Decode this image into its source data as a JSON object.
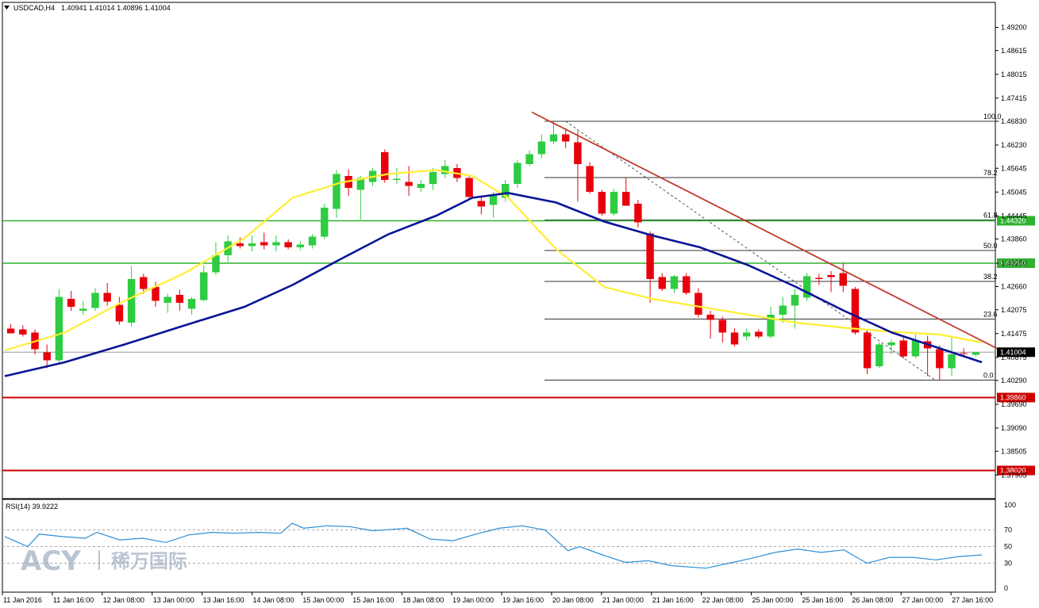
{
  "header": {
    "symbol": "USDCAD,H4",
    "ohlc": "1.40941 1.41014 1.40896 1.41004"
  },
  "rsi": {
    "label": "RSI(14) 39.9222",
    "levels": [
      "100",
      "70",
      "50",
      "30",
      "0"
    ]
  },
  "watermark": {
    "latin": "ACY",
    "chinese": "稀万国际"
  },
  "colors": {
    "bull": "#2ecc40",
    "bear": "#e8000b",
    "ma_fast": "#ffee33",
    "ma_slow": "#0a1496",
    "support": "#30b030",
    "resistance": "#cc0000",
    "trend": "#c0392b"
  },
  "chart_data": {
    "type": "candlestick",
    "title": "USDCAD,H4",
    "y_range": [
      1.3745,
      1.4955
    ],
    "x_labels": [
      "11 Jan 2016",
      "11 Jan 16:00",
      "12 Jan 08:00",
      "13 Jan 00:00",
      "13 Jan 16:00",
      "14 Jan 08:00",
      "15 Jan 00:00",
      "15 Jan 16:00",
      "18 Jan 08:00",
      "19 Jan 00:00",
      "19 Jan 16:00",
      "20 Jan 08:00",
      "21 Jan 00:00",
      "21 Jan 16:00",
      "22 Jan 08:00",
      "25 Jan 00:00",
      "25 Jan 16:00",
      "26 Jan 08:00",
      "27 Jan 00:00",
      "27 Jan 16:00"
    ],
    "y_ticks": [
      "1.49200",
      "1.48615",
      "1.48015",
      "1.47415",
      "1.46830",
      "1.46230",
      "1.45645",
      "1.45045",
      "1.44445",
      "1.43860",
      "1.43250",
      "1.42660",
      "1.42075",
      "1.41475",
      "1.40875",
      "1.40290",
      "1.39690",
      "1.39090",
      "1.38505",
      "1.37905"
    ],
    "candles": [
      {
        "o": 1.416,
        "h": 1.4172,
        "l": 1.4148,
        "c": 1.4148
      },
      {
        "o": 1.4158,
        "h": 1.4168,
        "l": 1.414,
        "c": 1.4145
      },
      {
        "o": 1.415,
        "h": 1.4158,
        "l": 1.4095,
        "c": 1.4108
      },
      {
        "o": 1.41,
        "h": 1.412,
        "l": 1.406,
        "c": 1.408
      },
      {
        "o": 1.408,
        "h": 1.426,
        "l": 1.4075,
        "c": 1.424
      },
      {
        "o": 1.4235,
        "h": 1.4255,
        "l": 1.4205,
        "c": 1.4215
      },
      {
        "o": 1.4205,
        "h": 1.423,
        "l": 1.4195,
        "c": 1.421
      },
      {
        "o": 1.4212,
        "h": 1.4262,
        "l": 1.4205,
        "c": 1.425
      },
      {
        "o": 1.425,
        "h": 1.4275,
        "l": 1.4218,
        "c": 1.4228
      },
      {
        "o": 1.422,
        "h": 1.424,
        "l": 1.417,
        "c": 1.4178
      },
      {
        "o": 1.4175,
        "h": 1.4318,
        "l": 1.4165,
        "c": 1.4285
      },
      {
        "o": 1.429,
        "h": 1.4298,
        "l": 1.4248,
        "c": 1.426
      },
      {
        "o": 1.4265,
        "h": 1.4278,
        "l": 1.4215,
        "c": 1.423
      },
      {
        "o": 1.4225,
        "h": 1.4248,
        "l": 1.42,
        "c": 1.424
      },
      {
        "o": 1.4245,
        "h": 1.4258,
        "l": 1.4205,
        "c": 1.4225
      },
      {
        "o": 1.421,
        "h": 1.424,
        "l": 1.4195,
        "c": 1.4235
      },
      {
        "o": 1.4232,
        "h": 1.432,
        "l": 1.4228,
        "c": 1.4302
      },
      {
        "o": 1.4302,
        "h": 1.4378,
        "l": 1.4295,
        "c": 1.4345
      },
      {
        "o": 1.4345,
        "h": 1.4395,
        "l": 1.4328,
        "c": 1.438
      },
      {
        "o": 1.4375,
        "h": 1.439,
        "l": 1.4362,
        "c": 1.4368
      },
      {
        "o": 1.4368,
        "h": 1.4395,
        "l": 1.4355,
        "c": 1.4375
      },
      {
        "o": 1.4378,
        "h": 1.4402,
        "l": 1.436,
        "c": 1.437
      },
      {
        "o": 1.437,
        "h": 1.4395,
        "l": 1.4355,
        "c": 1.4378
      },
      {
        "o": 1.4378,
        "h": 1.4385,
        "l": 1.436,
        "c": 1.4365
      },
      {
        "o": 1.4365,
        "h": 1.438,
        "l": 1.4358,
        "c": 1.4372
      },
      {
        "o": 1.437,
        "h": 1.4398,
        "l": 1.4362,
        "c": 1.4392
      },
      {
        "o": 1.4392,
        "h": 1.4475,
        "l": 1.4385,
        "c": 1.4465
      },
      {
        "o": 1.4462,
        "h": 1.456,
        "l": 1.444,
        "c": 1.455
      },
      {
        "o": 1.4545,
        "h": 1.4562,
        "l": 1.4495,
        "c": 1.4515
      },
      {
        "o": 1.451,
        "h": 1.4545,
        "l": 1.4435,
        "c": 1.454
      },
      {
        "o": 1.453,
        "h": 1.4565,
        "l": 1.452,
        "c": 1.4558
      },
      {
        "o": 1.4605,
        "h": 1.4612,
        "l": 1.4528,
        "c": 1.4535
      },
      {
        "o": 1.4535,
        "h": 1.4565,
        "l": 1.4525,
        "c": 1.4538
      },
      {
        "o": 1.453,
        "h": 1.457,
        "l": 1.4495,
        "c": 1.452
      },
      {
        "o": 1.4515,
        "h": 1.4535,
        "l": 1.4505,
        "c": 1.4525
      },
      {
        "o": 1.4525,
        "h": 1.4565,
        "l": 1.451,
        "c": 1.4555
      },
      {
        "o": 1.455,
        "h": 1.4585,
        "l": 1.454,
        "c": 1.457
      },
      {
        "o": 1.4565,
        "h": 1.4575,
        "l": 1.453,
        "c": 1.454
      },
      {
        "o": 1.454,
        "h": 1.4545,
        "l": 1.4485,
        "c": 1.4492
      },
      {
        "o": 1.4482,
        "h": 1.4496,
        "l": 1.4448,
        "c": 1.4468
      },
      {
        "o": 1.4472,
        "h": 1.4505,
        "l": 1.444,
        "c": 1.4495
      },
      {
        "o": 1.449,
        "h": 1.4535,
        "l": 1.448,
        "c": 1.4525
      },
      {
        "o": 1.4525,
        "h": 1.4585,
        "l": 1.4515,
        "c": 1.4578
      },
      {
        "o": 1.4575,
        "h": 1.461,
        "l": 1.457,
        "c": 1.46
      },
      {
        "o": 1.46,
        "h": 1.465,
        "l": 1.459,
        "c": 1.4632
      },
      {
        "o": 1.4632,
        "h": 1.4683,
        "l": 1.4625,
        "c": 1.465
      },
      {
        "o": 1.465,
        "h": 1.4665,
        "l": 1.4615,
        "c": 1.4632
      },
      {
        "o": 1.463,
        "h": 1.4658,
        "l": 1.448,
        "c": 1.4575
      },
      {
        "o": 1.457,
        "h": 1.458,
        "l": 1.45,
        "c": 1.4505
      },
      {
        "o": 1.4505,
        "h": 1.451,
        "l": 1.4445,
        "c": 1.445
      },
      {
        "o": 1.445,
        "h": 1.4512,
        "l": 1.4445,
        "c": 1.4505
      },
      {
        "o": 1.4505,
        "h": 1.454,
        "l": 1.447,
        "c": 1.447
      },
      {
        "o": 1.4475,
        "h": 1.4485,
        "l": 1.4415,
        "c": 1.4428
      },
      {
        "o": 1.44,
        "h": 1.4405,
        "l": 1.4225,
        "c": 1.4285
      },
      {
        "o": 1.429,
        "h": 1.43,
        "l": 1.4255,
        "c": 1.426
      },
      {
        "o": 1.426,
        "h": 1.4295,
        "l": 1.425,
        "c": 1.4292
      },
      {
        "o": 1.4292,
        "h": 1.43,
        "l": 1.4245,
        "c": 1.425
      },
      {
        "o": 1.425,
        "h": 1.4262,
        "l": 1.4188,
        "c": 1.4195
      },
      {
        "o": 1.4195,
        "h": 1.4205,
        "l": 1.4135,
        "c": 1.4182
      },
      {
        "o": 1.4182,
        "h": 1.419,
        "l": 1.4125,
        "c": 1.415
      },
      {
        "o": 1.415,
        "h": 1.416,
        "l": 1.4115,
        "c": 1.412
      },
      {
        "o": 1.414,
        "h": 1.416,
        "l": 1.413,
        "c": 1.415
      },
      {
        "o": 1.4152,
        "h": 1.4158,
        "l": 1.4135,
        "c": 1.414
      },
      {
        "o": 1.414,
        "h": 1.4215,
        "l": 1.4135,
        "c": 1.4195
      },
      {
        "o": 1.4195,
        "h": 1.424,
        "l": 1.4175,
        "c": 1.4218
      },
      {
        "o": 1.4218,
        "h": 1.426,
        "l": 1.416,
        "c": 1.4245
      },
      {
        "o": 1.4238,
        "h": 1.43,
        "l": 1.423,
        "c": 1.4292
      },
      {
        "o": 1.4288,
        "h": 1.4298,
        "l": 1.427,
        "c": 1.4285
      },
      {
        "o": 1.4295,
        "h": 1.4305,
        "l": 1.4252,
        "c": 1.429
      },
      {
        "o": 1.43,
        "h": 1.4325,
        "l": 1.4252,
        "c": 1.4268
      },
      {
        "o": 1.426,
        "h": 1.4265,
        "l": 1.4145,
        "c": 1.415
      },
      {
        "o": 1.415,
        "h": 1.4158,
        "l": 1.4045,
        "c": 1.406
      },
      {
        "o": 1.4065,
        "h": 1.4125,
        "l": 1.406,
        "c": 1.412
      },
      {
        "o": 1.4118,
        "h": 1.4132,
        "l": 1.4095,
        "c": 1.4125
      },
      {
        "o": 1.413,
        "h": 1.4138,
        "l": 1.4085,
        "c": 1.409
      },
      {
        "o": 1.409,
        "h": 1.4145,
        "l": 1.4085,
        "c": 1.413
      },
      {
        "o": 1.4128,
        "h": 1.4142,
        "l": 1.404,
        "c": 1.411
      },
      {
        "o": 1.4108,
        "h": 1.4118,
        "l": 1.403,
        "c": 1.406
      },
      {
        "o": 1.406,
        "h": 1.414,
        "l": 1.404,
        "c": 1.4095
      },
      {
        "o": 1.4098,
        "h": 1.411,
        "l": 1.409,
        "c": 1.4096
      },
      {
        "o": 1.4094,
        "h": 1.4101,
        "l": 1.409,
        "c": 1.41
      }
    ],
    "ma_fast": [
      [
        0,
        1.4105
      ],
      [
        10,
        1.415
      ],
      [
        20,
        1.423
      ],
      [
        30,
        1.43
      ],
      [
        40,
        1.4388
      ],
      [
        48,
        1.449
      ],
      [
        56,
        1.4528
      ],
      [
        64,
        1.455
      ],
      [
        72,
        1.456
      ],
      [
        78,
        1.4545
      ],
      [
        84,
        1.449
      ],
      [
        92,
        1.436
      ],
      [
        100,
        1.4265
      ],
      [
        108,
        1.4235
      ],
      [
        116,
        1.4215
      ],
      [
        124,
        1.4195
      ],
      [
        132,
        1.4175
      ],
      [
        140,
        1.4162
      ],
      [
        148,
        1.4152
      ],
      [
        156,
        1.4145
      ],
      [
        163,
        1.4125
      ]
    ],
    "ma_slow": [
      [
        0,
        1.404
      ],
      [
        10,
        1.4075
      ],
      [
        20,
        1.412
      ],
      [
        30,
        1.4168
      ],
      [
        40,
        1.4215
      ],
      [
        48,
        1.427
      ],
      [
        56,
        1.4335
      ],
      [
        64,
        1.4398
      ],
      [
        72,
        1.4445
      ],
      [
        78,
        1.449
      ],
      [
        84,
        1.4502
      ],
      [
        92,
        1.4478
      ],
      [
        100,
        1.443
      ],
      [
        108,
        1.4395
      ],
      [
        116,
        1.4365
      ],
      [
        124,
        1.432
      ],
      [
        132,
        1.4265
      ],
      [
        140,
        1.4205
      ],
      [
        148,
        1.415
      ],
      [
        156,
        1.411
      ],
      [
        163,
        1.4075
      ]
    ],
    "horizontal_lines": [
      {
        "label": "1.44320",
        "value": 1.4432,
        "kind": "support"
      },
      {
        "label": "1.43250",
        "value": 1.4325,
        "kind": "support"
      },
      {
        "label": "1.41004",
        "value": 1.41004,
        "kind": "price"
      },
      {
        "label": "1.39860",
        "value": 1.3986,
        "kind": "resistance"
      },
      {
        "label": "1.38020",
        "value": 1.3802,
        "kind": "resistance"
      }
    ],
    "fibonacci": {
      "high": 1.4683,
      "low": 1.403,
      "levels": [
        {
          "label": "100.0",
          "value": 1.4683
        },
        {
          "label": "78.2",
          "value": 1.4541
        },
        {
          "label": "61.8",
          "value": 1.4434
        },
        {
          "label": "50.0",
          "value": 1.4357
        },
        {
          "label": "38.2",
          "value": 1.4279
        },
        {
          "label": "23.6",
          "value": 1.4184
        },
        {
          "label": "0.0",
          "value": 1.403
        }
      ]
    },
    "trendline": {
      "from": [
        1.4706,
        46
      ],
      "to": [
        1.411,
        163
      ]
    },
    "rsi_series": [
      [
        0,
        62
      ],
      [
        4,
        50
      ],
      [
        6,
        65
      ],
      [
        10,
        62
      ],
      [
        14,
        60
      ],
      [
        16,
        67
      ],
      [
        20,
        58
      ],
      [
        24,
        60
      ],
      [
        28,
        55
      ],
      [
        32,
        64
      ],
      [
        36,
        67
      ],
      [
        40,
        66
      ],
      [
        44,
        67
      ],
      [
        48,
        66
      ],
      [
        50,
        78
      ],
      [
        52,
        72
      ],
      [
        56,
        75
      ],
      [
        60,
        74
      ],
      [
        64,
        69
      ],
      [
        70,
        72
      ],
      [
        74,
        59
      ],
      [
        78,
        57
      ],
      [
        82,
        65
      ],
      [
        86,
        72
      ],
      [
        90,
        75
      ],
      [
        94,
        70
      ],
      [
        98,
        45
      ],
      [
        100,
        50
      ],
      [
        104,
        40
      ],
      [
        108,
        31
      ],
      [
        112,
        33
      ],
      [
        116,
        27
      ],
      [
        122,
        24
      ],
      [
        126,
        30
      ],
      [
        130,
        36
      ],
      [
        134,
        43
      ],
      [
        138,
        47
      ],
      [
        142,
        43
      ],
      [
        146,
        46
      ],
      [
        150,
        30
      ],
      [
        154,
        37
      ],
      [
        158,
        37
      ],
      [
        162,
        34
      ],
      [
        166,
        38
      ],
      [
        170,
        40
      ]
    ]
  }
}
